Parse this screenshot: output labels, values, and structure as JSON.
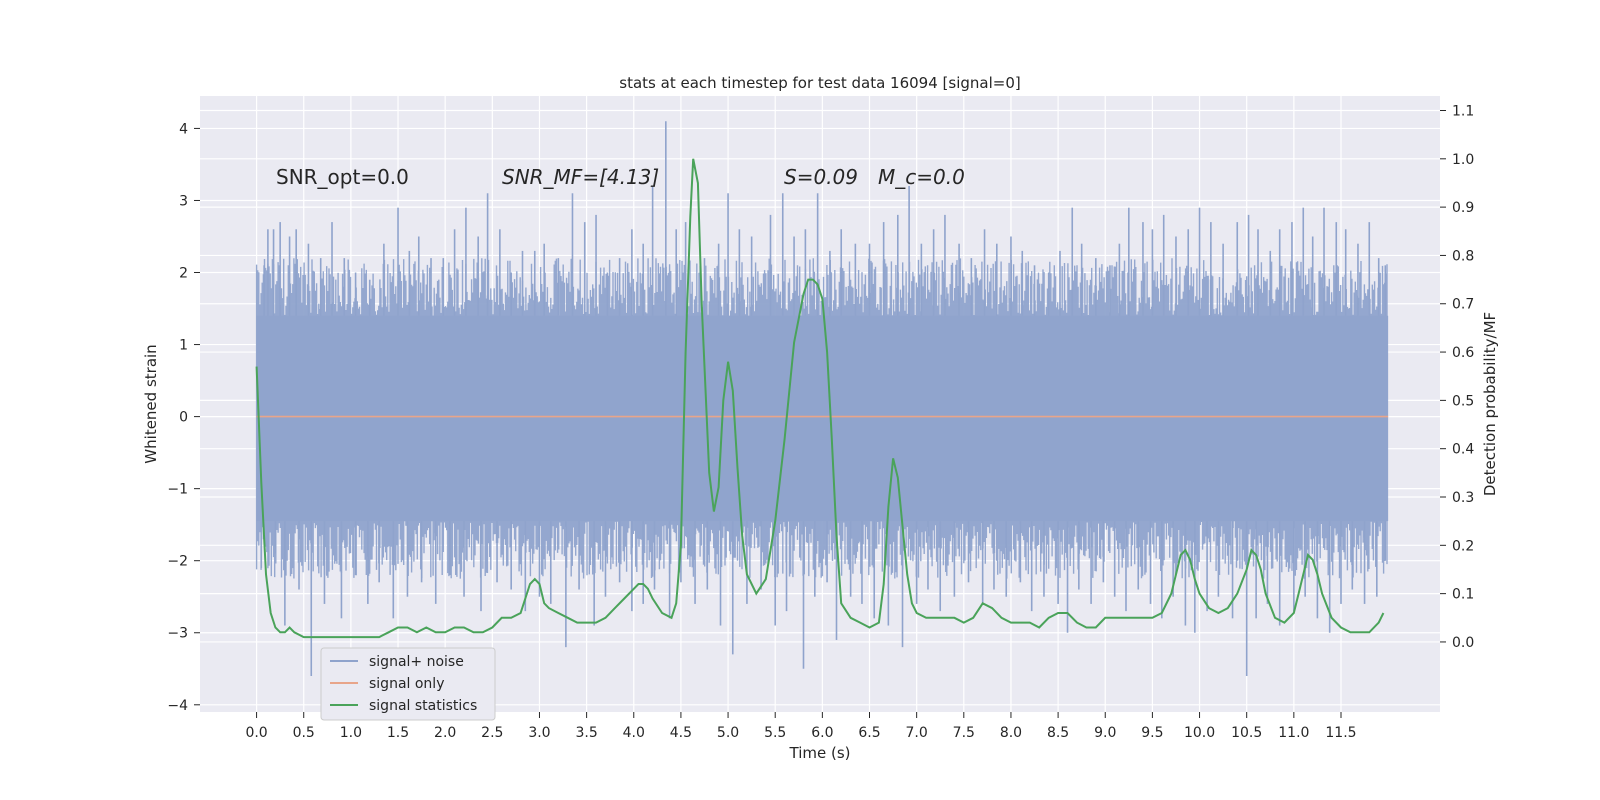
{
  "chart_data": {
    "type": "line",
    "title": "stats at each timestep for test data 16094 [signal=0]",
    "xlabel": "Time (s)",
    "ylabel": "Whitened strain",
    "y2label": "Detection probability/MF",
    "xlim": [
      -0.6,
      12.55
    ],
    "ylim": [
      -4.1,
      4.45
    ],
    "y2lim": [
      -0.145,
      1.13
    ],
    "x_ticks": [
      "0.0",
      "0.5",
      "1.0",
      "1.5",
      "2.0",
      "2.5",
      "3.0",
      "3.5",
      "4.0",
      "4.5",
      "5.0",
      "5.5",
      "6.0",
      "6.5",
      "7.0",
      "7.5",
      "8.0",
      "8.5",
      "9.0",
      "9.5",
      "10.0",
      "10.5",
      "11.0",
      "11.5"
    ],
    "y_ticks": [
      "4",
      "3",
      "2",
      "1",
      "0",
      "−1",
      "−2",
      "−3",
      "−4"
    ],
    "y2_ticks": [
      "1.1",
      "1.0",
      "0.9",
      "0.8",
      "0.7",
      "0.6",
      "0.5",
      "0.4",
      "0.3",
      "0.2",
      "0.1",
      "0.0"
    ],
    "grid": true,
    "annotations": [
      {
        "text": "SNR_opt=0.0",
        "x": 0.2,
        "y": 3.3
      },
      {
        "text": "SNR_MF=[4.13]",
        "x": 2.6,
        "y": 3.3
      },
      {
        "text": "S=0.09",
        "x": 5.6,
        "y": 3.3
      },
      {
        "text": "M_c=0.0",
        "x": 6.6,
        "y": 3.3
      }
    ],
    "legend": {
      "position": "lower-left",
      "entries": [
        {
          "label": "signal+ noise",
          "color": "#8fa3cc"
        },
        {
          "label": "signal only",
          "color": "#e8a58a"
        },
        {
          "label": "signal statistics",
          "color": "#4aa35a"
        }
      ]
    },
    "series": [
      {
        "name": "signal+ noise",
        "axis": "left",
        "color": "#8fa3cc",
        "x_range": [
          0.0,
          12.0
        ],
        "envelope": {
          "upper": 1.4,
          "lower": -1.45
        },
        "spikes": [
          [
            0.08,
            2.1
          ],
          [
            0.12,
            2.6
          ],
          [
            0.18,
            2.6
          ],
          [
            0.25,
            2.7
          ],
          [
            0.35,
            2.5
          ],
          [
            0.42,
            2.6
          ],
          [
            0.55,
            2.4
          ],
          [
            0.68,
            2.2
          ],
          [
            0.8,
            2.7
          ],
          [
            0.93,
            2.2
          ],
          [
            1.05,
            2.0
          ],
          [
            1.2,
            1.9
          ],
          [
            1.35,
            2.4
          ],
          [
            1.5,
            2.9
          ],
          [
            1.62,
            2.3
          ],
          [
            1.72,
            2.5
          ],
          [
            1.85,
            2.2
          ],
          [
            1.98,
            2.2
          ],
          [
            2.1,
            2.6
          ],
          [
            2.22,
            2.9
          ],
          [
            2.35,
            2.5
          ],
          [
            2.45,
            3.1
          ],
          [
            2.58,
            2.6
          ],
          [
            2.7,
            2.0
          ],
          [
            2.82,
            2.3
          ],
          [
            2.95,
            2.3
          ],
          [
            3.05,
            2.4
          ],
          [
            3.2,
            2.2
          ],
          [
            3.35,
            3.1
          ],
          [
            3.48,
            2.7
          ],
          [
            3.6,
            2.8
          ],
          [
            3.72,
            2.0
          ],
          [
            3.85,
            2.2
          ],
          [
            3.98,
            2.6
          ],
          [
            4.1,
            2.4
          ],
          [
            4.2,
            3.2
          ],
          [
            4.34,
            4.1
          ],
          [
            4.45,
            2.6
          ],
          [
            4.55,
            2.7
          ],
          [
            4.75,
            2.2
          ],
          [
            4.9,
            2.4
          ],
          [
            5.0,
            3.1
          ],
          [
            5.12,
            2.6
          ],
          [
            5.25,
            2.5
          ],
          [
            5.45,
            2.8
          ],
          [
            5.58,
            3.1
          ],
          [
            5.7,
            2.5
          ],
          [
            5.82,
            2.6
          ],
          [
            5.95,
            3.1
          ],
          [
            6.08,
            2.3
          ],
          [
            6.2,
            2.6
          ],
          [
            6.35,
            2.4
          ],
          [
            6.5,
            2.4
          ],
          [
            6.65,
            2.7
          ],
          [
            6.8,
            2.8
          ],
          [
            6.92,
            3.2
          ],
          [
            7.05,
            2.4
          ],
          [
            7.18,
            2.6
          ],
          [
            7.3,
            2.8
          ],
          [
            7.45,
            2.4
          ],
          [
            7.58,
            2.2
          ],
          [
            7.72,
            2.6
          ],
          [
            7.85,
            2.4
          ],
          [
            8.0,
            2.5
          ],
          [
            8.12,
            2.3
          ],
          [
            8.25,
            2.1
          ],
          [
            8.4,
            2.0
          ],
          [
            8.52,
            2.3
          ],
          [
            8.65,
            2.9
          ],
          [
            8.75,
            2.4
          ],
          [
            8.9,
            2.2
          ],
          [
            9.05,
            2.1
          ],
          [
            9.15,
            2.4
          ],
          [
            9.25,
            2.9
          ],
          [
            9.4,
            2.7
          ],
          [
            9.5,
            2.6
          ],
          [
            9.62,
            2.8
          ],
          [
            9.75,
            2.5
          ],
          [
            9.88,
            2.6
          ],
          [
            10.0,
            2.9
          ],
          [
            10.12,
            2.7
          ],
          [
            10.25,
            2.4
          ],
          [
            10.4,
            2.7
          ],
          [
            10.52,
            2.8
          ],
          [
            10.62,
            2.6
          ],
          [
            10.75,
            2.3
          ],
          [
            10.85,
            2.6
          ],
          [
            10.98,
            2.7
          ],
          [
            11.1,
            2.9
          ],
          [
            11.2,
            2.5
          ],
          [
            11.32,
            2.9
          ],
          [
            11.45,
            2.7
          ],
          [
            11.55,
            2.6
          ],
          [
            11.68,
            2.4
          ],
          [
            11.8,
            2.7
          ],
          [
            11.9,
            2.2
          ],
          [
            11.97,
            2.1
          ],
          [
            0.05,
            -2.1
          ],
          [
            0.2,
            -1.9
          ],
          [
            0.3,
            -2.9
          ],
          [
            0.45,
            -2.4
          ],
          [
            0.58,
            -3.6
          ],
          [
            0.72,
            -2.6
          ],
          [
            0.9,
            -2.8
          ],
          [
            1.05,
            -2.2
          ],
          [
            1.18,
            -2.6
          ],
          [
            1.3,
            -2.3
          ],
          [
            1.45,
            -2.8
          ],
          [
            1.6,
            -2.5
          ],
          [
            1.75,
            -2.3
          ],
          [
            1.9,
            -2.6
          ],
          [
            2.05,
            -2.2
          ],
          [
            2.2,
            -2.5
          ],
          [
            2.38,
            -2.7
          ],
          [
            2.55,
            -2.3
          ],
          [
            2.7,
            -2.4
          ],
          [
            2.85,
            -2.7
          ],
          [
            3.0,
            -2.5
          ],
          [
            3.12,
            -2.6
          ],
          [
            3.28,
            -3.2
          ],
          [
            3.42,
            -2.4
          ],
          [
            3.58,
            -2.9
          ],
          [
            3.7,
            -2.5
          ],
          [
            3.85,
            -2.3
          ],
          [
            3.98,
            -2.7
          ],
          [
            4.1,
            -2.6
          ],
          [
            4.22,
            -2.4
          ],
          [
            4.38,
            -2.8
          ],
          [
            4.5,
            -2.3
          ],
          [
            4.65,
            -2.6
          ],
          [
            4.78,
            -2.4
          ],
          [
            4.92,
            -2.9
          ],
          [
            5.05,
            -3.3
          ],
          [
            5.2,
            -2.6
          ],
          [
            5.35,
            -2.4
          ],
          [
            5.5,
            -2.9
          ],
          [
            5.62,
            -2.7
          ],
          [
            5.8,
            -3.5
          ],
          [
            5.92,
            -2.5
          ],
          [
            6.05,
            -2.3
          ],
          [
            6.15,
            -3.1
          ],
          [
            6.3,
            -2.5
          ],
          [
            6.42,
            -2.6
          ],
          [
            6.55,
            -2.8
          ],
          [
            6.7,
            -2.9
          ],
          [
            6.85,
            -3.2
          ],
          [
            7.0,
            -2.6
          ],
          [
            7.12,
            -2.4
          ],
          [
            7.25,
            -2.7
          ],
          [
            7.4,
            -2.5
          ],
          [
            7.55,
            -2.3
          ],
          [
            7.7,
            -2.6
          ],
          [
            7.82,
            -2.4
          ],
          [
            7.95,
            -2.5
          ],
          [
            8.1,
            -2.3
          ],
          [
            8.22,
            -2.7
          ],
          [
            8.35,
            -2.5
          ],
          [
            8.5,
            -2.6
          ],
          [
            8.6,
            -3.0
          ],
          [
            8.72,
            -2.4
          ],
          [
            8.85,
            -2.6
          ],
          [
            8.98,
            -2.3
          ],
          [
            9.1,
            -2.5
          ],
          [
            9.22,
            -2.7
          ],
          [
            9.35,
            -2.4
          ],
          [
            9.48,
            -2.6
          ],
          [
            9.6,
            -2.8
          ],
          [
            9.72,
            -2.5
          ],
          [
            9.85,
            -2.9
          ],
          [
            9.95,
            -3.0
          ],
          [
            10.08,
            -2.7
          ],
          [
            10.2,
            -2.5
          ],
          [
            10.35,
            -2.8
          ],
          [
            10.5,
            -3.6
          ],
          [
            10.6,
            -2.8
          ],
          [
            10.72,
            -2.6
          ],
          [
            10.85,
            -2.9
          ],
          [
            11.0,
            -2.7
          ],
          [
            11.12,
            -2.5
          ],
          [
            11.25,
            -2.8
          ],
          [
            11.38,
            -3.0
          ],
          [
            11.5,
            -2.6
          ],
          [
            11.62,
            -2.4
          ],
          [
            11.75,
            -2.6
          ],
          [
            11.88,
            -2.5
          ],
          [
            11.97,
            -2.0
          ]
        ]
      },
      {
        "name": "signal only",
        "axis": "left",
        "color": "#e8a58a",
        "x": [
          0.0,
          12.0
        ],
        "values": [
          0.0,
          0.0
        ]
      },
      {
        "name": "signal statistics",
        "axis": "right",
        "color": "#4aa35a",
        "x": [
          0.0,
          0.05,
          0.1,
          0.15,
          0.2,
          0.25,
          0.3,
          0.35,
          0.4,
          0.5,
          0.6,
          0.7,
          0.8,
          0.9,
          1.0,
          1.1,
          1.2,
          1.3,
          1.4,
          1.5,
          1.6,
          1.7,
          1.8,
          1.9,
          2.0,
          2.1,
          2.2,
          2.3,
          2.4,
          2.5,
          2.6,
          2.7,
          2.8,
          2.9,
          2.95,
          3.0,
          3.05,
          3.1,
          3.2,
          3.3,
          3.4,
          3.5,
          3.6,
          3.7,
          3.8,
          3.9,
          4.0,
          4.05,
          4.1,
          4.15,
          4.2,
          4.3,
          4.4,
          4.45,
          4.5,
          4.55,
          4.6,
          4.63,
          4.68,
          4.72,
          4.8,
          4.85,
          4.9,
          4.95,
          5.0,
          5.05,
          5.1,
          5.15,
          5.2,
          5.3,
          5.4,
          5.5,
          5.6,
          5.7,
          5.8,
          5.85,
          5.9,
          5.95,
          6.0,
          6.05,
          6.1,
          6.15,
          6.2,
          6.3,
          6.4,
          6.5,
          6.6,
          6.65,
          6.7,
          6.75,
          6.8,
          6.85,
          6.9,
          6.95,
          7.0,
          7.1,
          7.2,
          7.3,
          7.4,
          7.5,
          7.6,
          7.7,
          7.8,
          7.9,
          8.0,
          8.1,
          8.2,
          8.3,
          8.4,
          8.5,
          8.6,
          8.7,
          8.8,
          8.9,
          9.0,
          9.1,
          9.2,
          9.3,
          9.4,
          9.5,
          9.6,
          9.7,
          9.8,
          9.85,
          9.9,
          9.95,
          10.0,
          10.1,
          10.2,
          10.3,
          10.4,
          10.5,
          10.55,
          10.6,
          10.65,
          10.7,
          10.8,
          10.9,
          11.0,
          11.05,
          11.1,
          11.15,
          11.2,
          11.25,
          11.3,
          11.4,
          11.5,
          11.6,
          11.7,
          11.8,
          11.9,
          11.95
        ],
        "values": [
          0.57,
          0.33,
          0.14,
          0.06,
          0.03,
          0.02,
          0.02,
          0.03,
          0.02,
          0.01,
          0.01,
          0.01,
          0.01,
          0.01,
          0.01,
          0.01,
          0.01,
          0.01,
          0.02,
          0.03,
          0.03,
          0.02,
          0.03,
          0.02,
          0.02,
          0.03,
          0.03,
          0.02,
          0.02,
          0.03,
          0.05,
          0.05,
          0.06,
          0.12,
          0.13,
          0.12,
          0.08,
          0.07,
          0.06,
          0.05,
          0.04,
          0.04,
          0.04,
          0.05,
          0.07,
          0.09,
          0.11,
          0.12,
          0.12,
          0.11,
          0.09,
          0.06,
          0.05,
          0.08,
          0.2,
          0.6,
          0.88,
          1.0,
          0.95,
          0.7,
          0.35,
          0.27,
          0.32,
          0.5,
          0.58,
          0.52,
          0.36,
          0.22,
          0.14,
          0.1,
          0.13,
          0.25,
          0.42,
          0.62,
          0.72,
          0.75,
          0.75,
          0.74,
          0.71,
          0.6,
          0.42,
          0.22,
          0.08,
          0.05,
          0.04,
          0.03,
          0.04,
          0.12,
          0.28,
          0.38,
          0.34,
          0.24,
          0.14,
          0.08,
          0.06,
          0.05,
          0.05,
          0.05,
          0.05,
          0.04,
          0.05,
          0.08,
          0.07,
          0.05,
          0.04,
          0.04,
          0.04,
          0.03,
          0.05,
          0.06,
          0.06,
          0.04,
          0.03,
          0.03,
          0.05,
          0.05,
          0.05,
          0.05,
          0.05,
          0.05,
          0.06,
          0.1,
          0.18,
          0.19,
          0.17,
          0.13,
          0.1,
          0.07,
          0.06,
          0.07,
          0.1,
          0.15,
          0.19,
          0.18,
          0.15,
          0.1,
          0.05,
          0.04,
          0.06,
          0.1,
          0.14,
          0.18,
          0.17,
          0.14,
          0.1,
          0.05,
          0.03,
          0.02,
          0.02,
          0.02,
          0.04,
          0.06
        ]
      }
    ]
  }
}
